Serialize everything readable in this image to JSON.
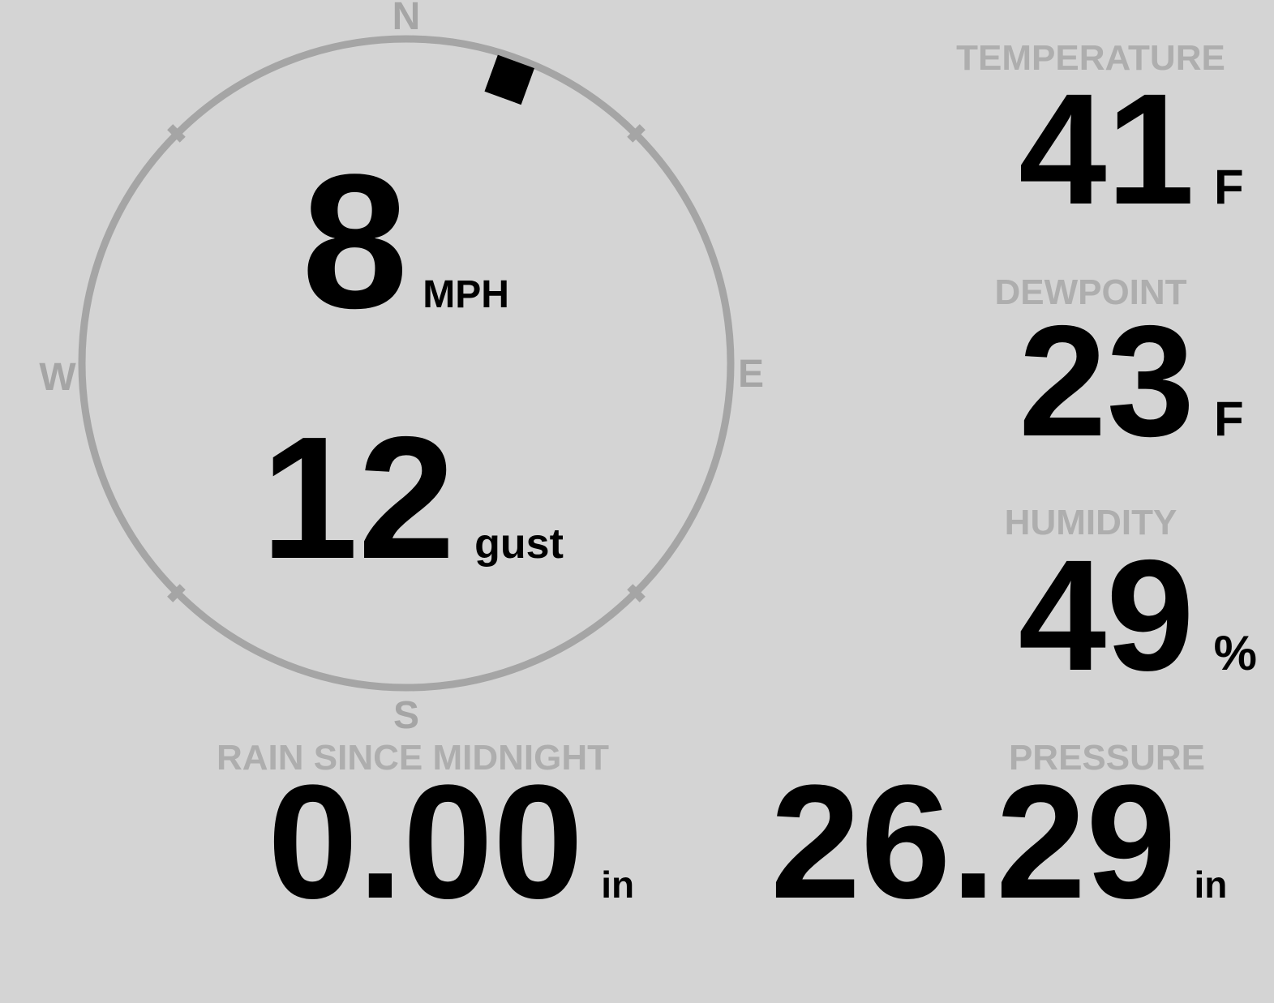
{
  "theme": {
    "background": "#d4d4d4",
    "label": "#aeaeae",
    "compass": "#a5a5a5",
    "value": "#000000",
    "marker": "#000000"
  },
  "wind": {
    "speed": "8",
    "speed_unit": "MPH",
    "gust": "12",
    "gust_label": "gust",
    "direction_degrees": 20,
    "compass": {
      "north": "N",
      "east": "E",
      "south": "S",
      "west": "W"
    }
  },
  "temperature": {
    "label": "TEMPERATURE",
    "value": "41",
    "unit": "F"
  },
  "dewpoint": {
    "label": "DEWPOINT",
    "value": "23",
    "unit": "F"
  },
  "humidity": {
    "label": "HUMIDITY",
    "value": "49",
    "unit": "%"
  },
  "rain": {
    "label": "RAIN SINCE MIDNIGHT",
    "value": "0.00",
    "unit": "in"
  },
  "pressure": {
    "label": "PRESSURE",
    "value": "26.29",
    "unit": "in"
  }
}
